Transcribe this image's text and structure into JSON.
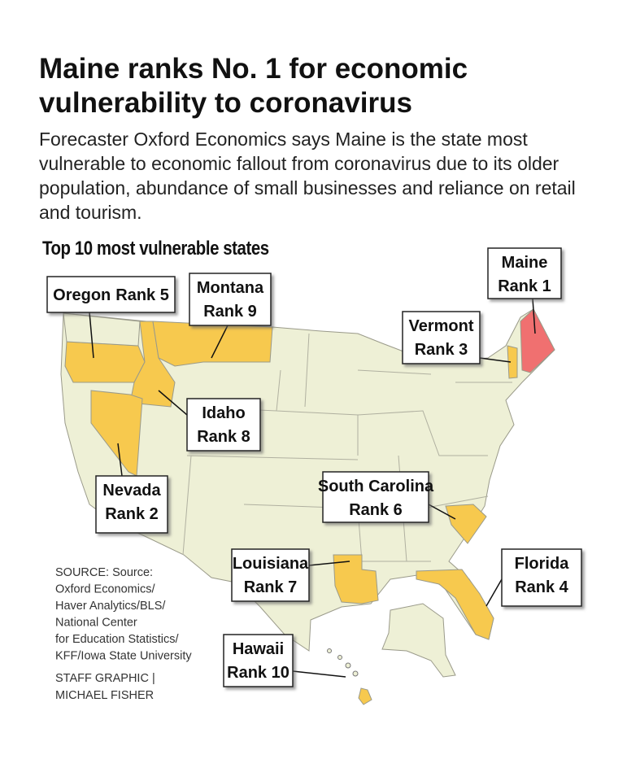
{
  "title": "Maine ranks No. 1 for economic vulnerability to coronavirus",
  "description": "Forecaster Oxford Economics says Maine is the state most vulnerable to economic fallout from coronavirus due to its older population, abundance of small businesses and reliance on retail and tourism.",
  "subtitle": "Top 10 most vulnerable states",
  "states": [
    {
      "name": "Maine",
      "rank": "Rank 1"
    },
    {
      "name": "Nevada",
      "rank": "Rank 2"
    },
    {
      "name": "Vermont",
      "rank": "Rank 3"
    },
    {
      "name": "Florida",
      "rank": "Rank 4"
    },
    {
      "name": "Oregon",
      "rank": "Rank 5"
    },
    {
      "name": "South Carolina",
      "rank": "Rank 6"
    },
    {
      "name": "Louisiana",
      "rank": "Rank 7"
    },
    {
      "name": "Idaho",
      "rank": "Rank 8"
    },
    {
      "name": "Montana",
      "rank": "Rank 9"
    },
    {
      "name": "Hawaii",
      "rank": "Rank 10"
    }
  ],
  "source": [
    "SOURCE: Source:",
    "Oxford Economics/",
    "Haver Analytics/BLS/",
    "National Center",
    "for Education Statistics/",
    "KFF/Iowa State University"
  ],
  "credit": [
    "STAFF GRAPHIC |",
    "MICHAEL FISHER"
  ]
}
